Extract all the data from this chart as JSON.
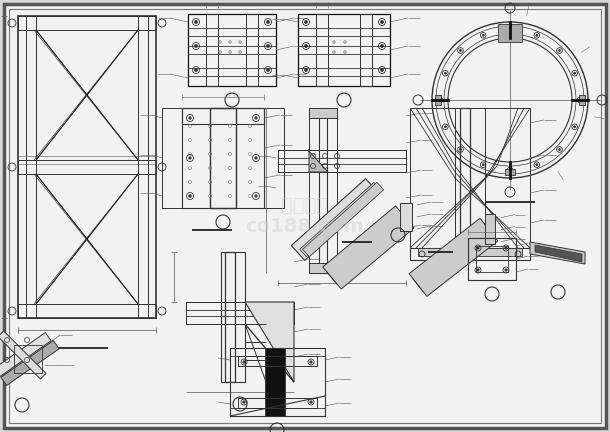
{
  "bg_color": "#ffffff",
  "border_color": "#444444",
  "line_color": "#333333",
  "dark_line": "#111111",
  "page_bg": "#d8d8d8",
  "inner_bg": "#f2f2f2",
  "watermark_color": "#c0c0c0"
}
